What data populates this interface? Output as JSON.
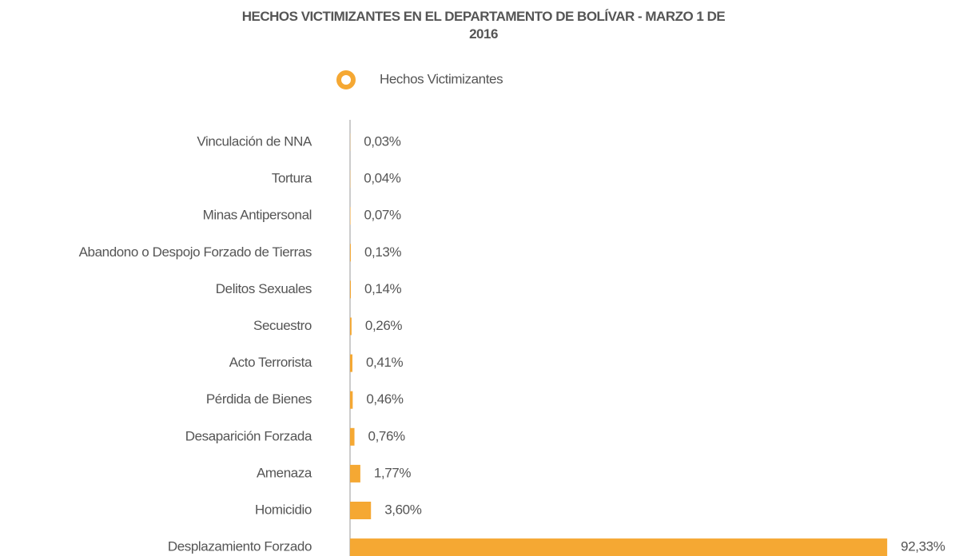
{
  "chart_data": {
    "type": "bar",
    "orientation": "horizontal",
    "title": "HECHOS VICTIMIZANTES EN EL DEPARTAMENTO DE BOLÍVAR - MARZO 1 DE 2016",
    "series": [
      {
        "name": "Hechos Victimizantes",
        "color": "#f5a833",
        "values": [
          0.03,
          0.04,
          0.07,
          0.13,
          0.14,
          0.26,
          0.41,
          0.46,
          0.76,
          1.77,
          3.6,
          92.33
        ],
        "value_labels": [
          "0,03%",
          "0,04%",
          "0,07%",
          "0,13%",
          "0,14%",
          "0,26%",
          "0,41%",
          "0,46%",
          "0,76%",
          "1,77%",
          "3,60%",
          "92,33%"
        ]
      }
    ],
    "categories": [
      "Vinculación de NNA",
      "Tortura",
      "Minas Antipersonal",
      "Abandono o Despojo Forzado de Tierras",
      "Delitos Sexuales",
      "Secuestro",
      "Acto Terrorista",
      "Pérdida de Bienes",
      "Desaparición Forzada",
      "Amenaza",
      "Homicidio",
      "Desplazamiento Forzado"
    ],
    "xlim": [
      0,
      100
    ]
  }
}
